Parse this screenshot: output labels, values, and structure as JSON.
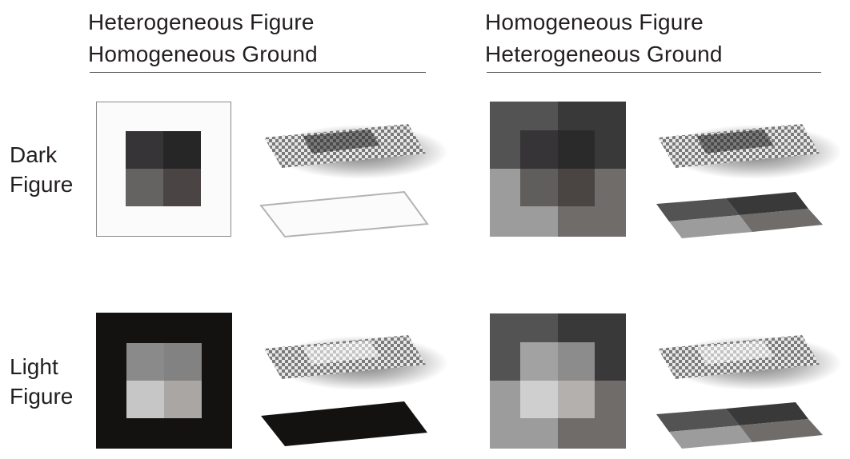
{
  "column_headers": [
    {
      "line1": "Heterogeneous Figure",
      "line2": "Homogeneous Ground"
    },
    {
      "line1": "Homogeneous Figure",
      "line2": "Heterogeneous Ground"
    }
  ],
  "row_headers": [
    {
      "line1": "Dark",
      "line2": "Figure"
    },
    {
      "line1": "Light",
      "line2": "Figure"
    }
  ],
  "colors": {
    "text": "#231f20",
    "rule": "#555555",
    "white_ground": "#fbfbfb",
    "white_ground_border": "#8a8a8a",
    "black_ground": "#141211",
    "dark_figure": [
      "#363436",
      "#272626",
      "#646362",
      "#4a4544"
    ],
    "light_figure": [
      "#8a8a8a",
      "#828282",
      "#c6c6c6",
      "#a9a6a4"
    ],
    "hetero_ground": [
      "#545354",
      "#3a393a",
      "#9c9c9c",
      "#706c6a"
    ],
    "dark_figure_homog": "#3e3d3e",
    "light_figure_homog": "#b4b4b4"
  }
}
